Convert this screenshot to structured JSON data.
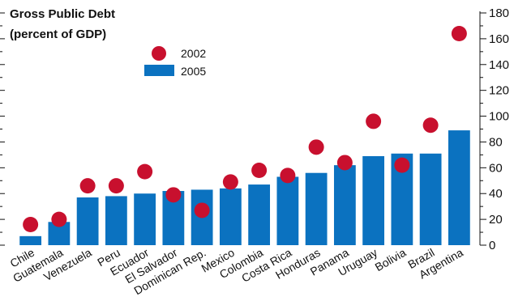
{
  "chart_data": {
    "type": "bar",
    "title": "Gross Public Debt",
    "subtitle": "(percent of GDP)",
    "categories": [
      "Chile",
      "Guatemala",
      "Venezuela",
      "Peru",
      "Ecuador",
      "El Salvador",
      "Dominican Rep.",
      "Mexico",
      "Colombia",
      "Costa Rica",
      "Honduras",
      "Panama",
      "Uruguay",
      "Bolivia",
      "Brazil",
      "Argentina"
    ],
    "series": [
      {
        "name": "2005",
        "kind": "bar",
        "color": "#0b72c0",
        "values": [
          7,
          18,
          37,
          38,
          40,
          42,
          43,
          44,
          47,
          53,
          56,
          62,
          69,
          71,
          71,
          89
        ]
      },
      {
        "name": "2002",
        "kind": "marker",
        "color": "#c8102e",
        "values": [
          16,
          20,
          46,
          46,
          57,
          39,
          27,
          49,
          58,
          54,
          76,
          64,
          96,
          62,
          93,
          164
        ]
      }
    ],
    "ylim": [
      0,
      180
    ],
    "yticks": [
      "0",
      "20",
      "40",
      "60",
      "80",
      "100",
      "120",
      "140",
      "160",
      "180"
    ],
    "y_axis_position": "right",
    "legend_position": "top-left",
    "legend_order": [
      "2002",
      "2005"
    ],
    "grid": false
  }
}
